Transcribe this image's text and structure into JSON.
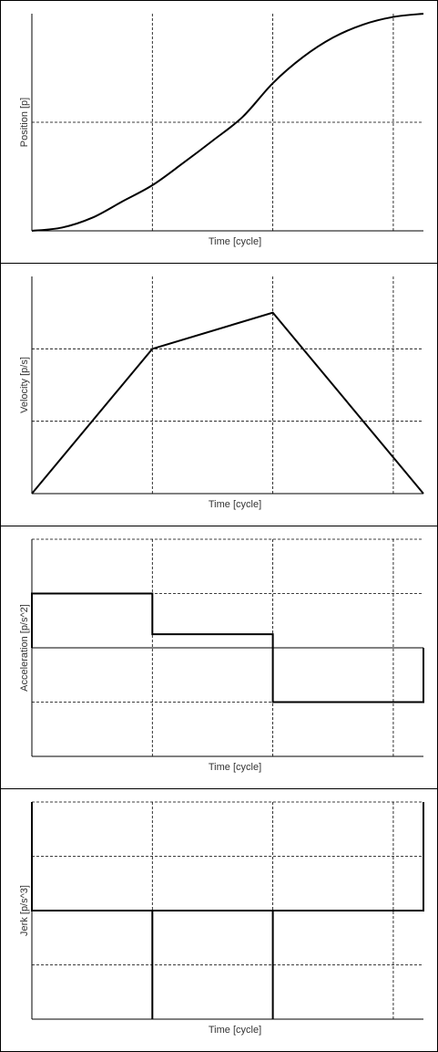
{
  "chart_data": [
    {
      "type": "line",
      "title": "",
      "xlabel": "Time [cycle]",
      "ylabel": "Position [p]",
      "xlim": [
        0,
        3.25
      ],
      "ylim": [
        0,
        1
      ],
      "grid": true,
      "x_gridlines": [
        1,
        2,
        3
      ],
      "y_gridlines": [
        0.5
      ],
      "series": [
        {
          "x": [
            0,
            0.25,
            0.5,
            0.75,
            1.0,
            1.25,
            1.5,
            1.75,
            2.0,
            2.25,
            2.5,
            2.75,
            3.0,
            3.25
          ],
          "values": [
            0,
            0.015,
            0.06,
            0.135,
            0.21,
            0.31,
            0.415,
            0.525,
            0.68,
            0.8,
            0.89,
            0.95,
            0.985,
            1.0
          ],
          "step": false
        }
      ]
    },
    {
      "type": "line",
      "title": "",
      "xlabel": "Time [cycle]",
      "ylabel": "Velocity [p/s]",
      "xlim": [
        0,
        3.25
      ],
      "ylim": [
        0,
        3
      ],
      "grid": true,
      "x_gridlines": [
        1,
        2,
        3
      ],
      "y_gridlines": [
        1,
        2
      ],
      "series": [
        {
          "x": [
            0,
            1,
            2,
            3.25
          ],
          "values": [
            0,
            2,
            2.5,
            0
          ],
          "step": false
        }
      ]
    },
    {
      "type": "line",
      "title": "",
      "xlabel": "Time [cycle]",
      "ylabel": "Acceleration [p/s^2]",
      "xlim": [
        0,
        3.25
      ],
      "ylim": [
        -2,
        2
      ],
      "grid": true,
      "x_gridlines": [
        1,
        2,
        3
      ],
      "y_gridlines": [
        -1,
        1,
        2
      ],
      "series": [
        {
          "x": [
            0,
            0,
            1,
            1,
            2,
            2,
            3.25,
            3.25
          ],
          "values": [
            0,
            1,
            1,
            0.25,
            0.25,
            -1,
            -1,
            0
          ],
          "step": false
        }
      ]
    },
    {
      "type": "line",
      "title": "",
      "xlabel": "Time [cycle]",
      "ylabel": "Jerk [p/s^3]",
      "xlim": [
        0,
        3.25
      ],
      "ylim": [
        -2,
        2
      ],
      "grid": true,
      "x_gridlines": [
        1,
        2,
        3
      ],
      "y_gridlines": [
        -1,
        1,
        2
      ],
      "series": [
        {
          "x": [
            0,
            0,
            0,
            1,
            1,
            1,
            2,
            2,
            2,
            3.25,
            3.25,
            3.25
          ],
          "values": [
            0,
            2,
            0,
            0,
            -2,
            0,
            0,
            -2,
            0,
            0,
            2,
            0
          ],
          "step": false
        }
      ]
    }
  ]
}
